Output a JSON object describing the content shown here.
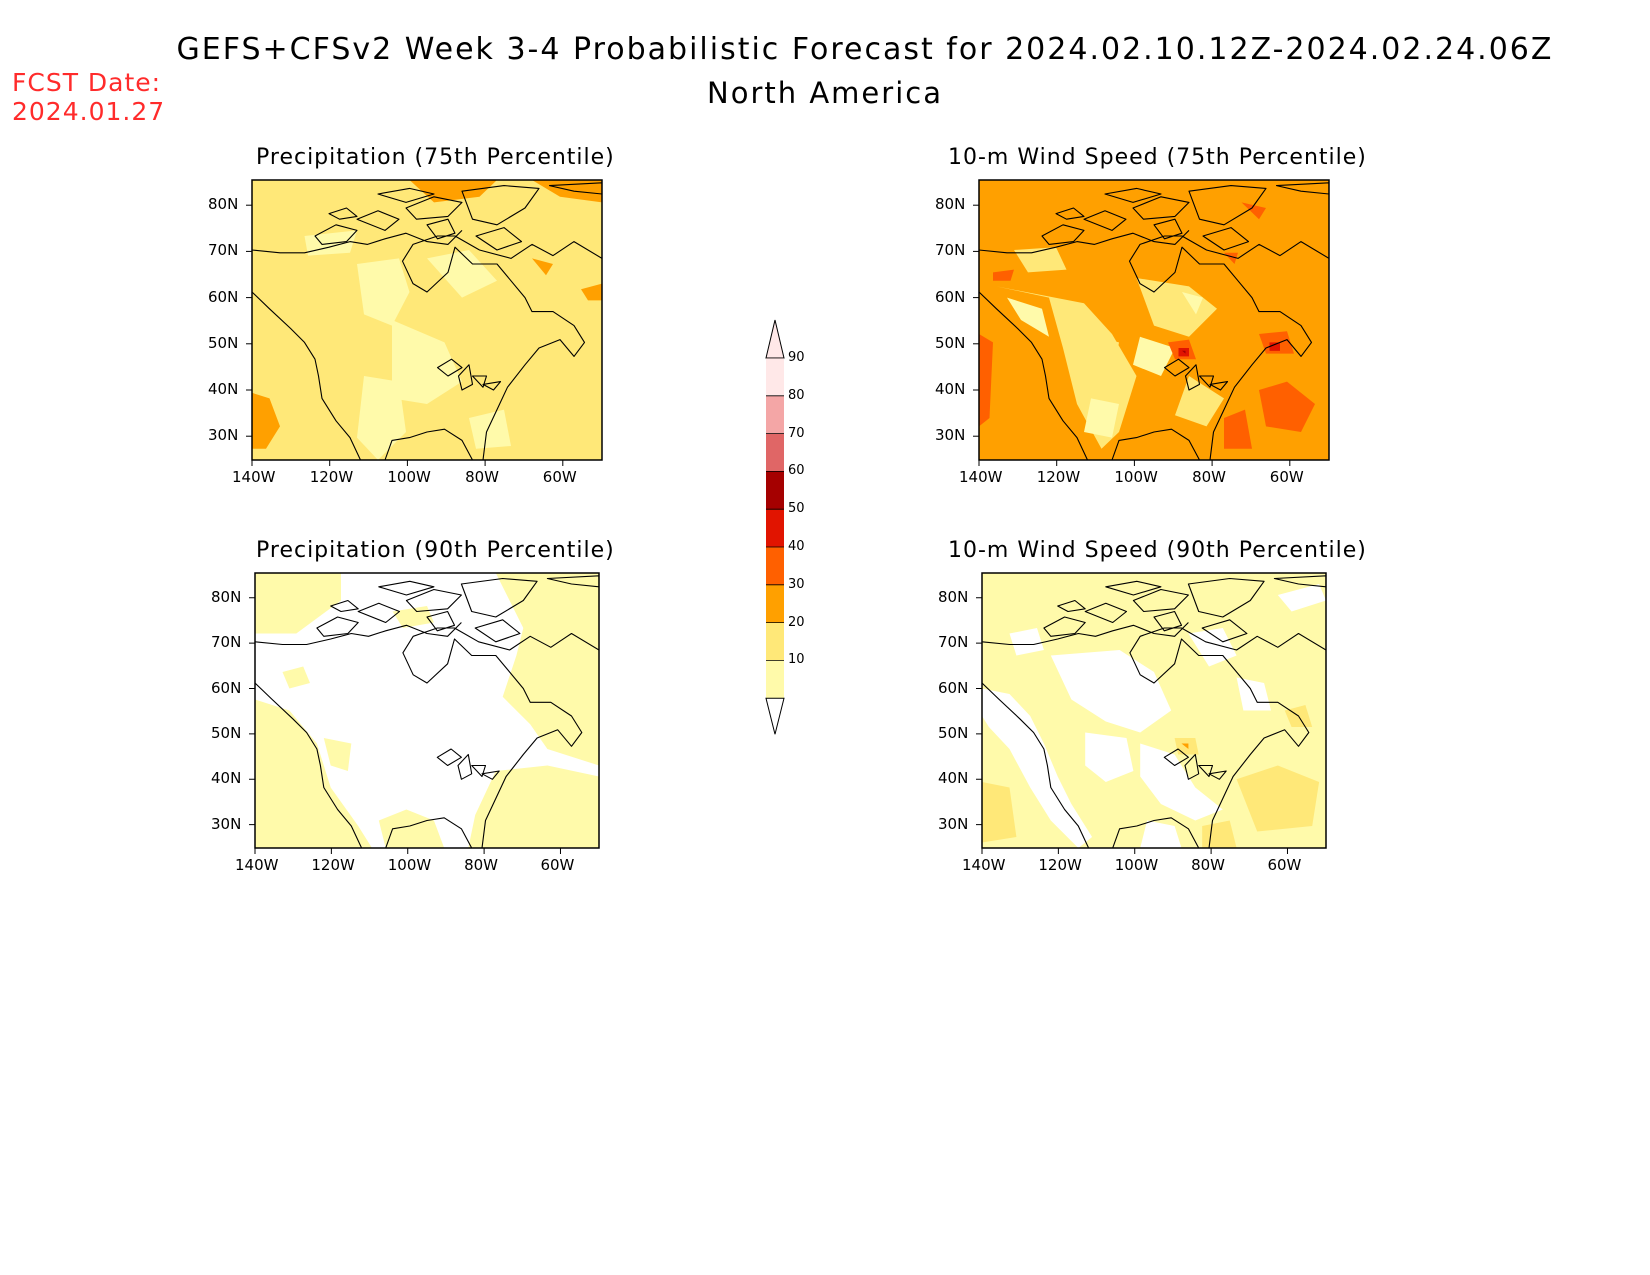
{
  "title": "GEFS+CFSv2 Week 3-4 Probabilistic Forecast for 2024.02.10.12Z-2024.02.24.06Z",
  "subtitle": "North America",
  "forecast_date_label": "FCST Date:",
  "forecast_date": "2024.01.27",
  "colors": {
    "c10": "#fffaaa",
    "c20": "#ffe878",
    "c30": "#ffa000",
    "c40": "#ff6000",
    "c50": "#e11400",
    "c60": "#a50000",
    "c70": "#e06666",
    "c80": "#f4a6a6",
    "c90": "#ffe8e8",
    "fcst_text": "#ff2b2b"
  },
  "colorbar": {
    "levels": [
      "10",
      "20",
      "30",
      "40",
      "50",
      "60",
      "70",
      "80",
      "90"
    ]
  },
  "x_ticks": [
    "140W",
    "120W",
    "100W",
    "80W",
    "60W"
  ],
  "y_ticks": [
    "80N",
    "70N",
    "60N",
    "50N",
    "40N",
    "30N"
  ],
  "panels": [
    {
      "id": "precip75",
      "title": "Precipitation (75th Percentile)",
      "base": "c20"
    },
    {
      "id": "wind75",
      "title": "10-m Wind Speed (75th Percentile)",
      "base": "c30"
    },
    {
      "id": "precip90",
      "title": "Precipitation (90th Percentile)",
      "base": "white"
    },
    {
      "id": "wind90",
      "title": "10-m Wind Speed (90th Percentile)",
      "base": "c10"
    }
  ]
}
